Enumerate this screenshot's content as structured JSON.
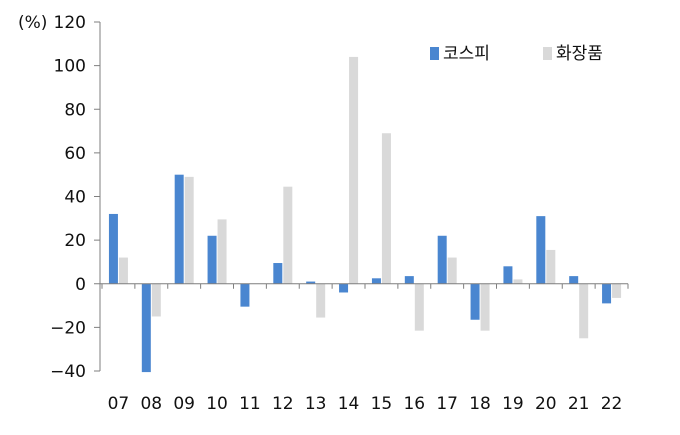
{
  "chart_data": {
    "type": "bar",
    "unit_label": "(%)",
    "categories": [
      "07",
      "08",
      "09",
      "10",
      "11",
      "12",
      "13",
      "14",
      "15",
      "16",
      "17",
      "18",
      "19",
      "20",
      "21",
      "22"
    ],
    "series": [
      {
        "name": "코스피",
        "color": "#4A86D0",
        "values": [
          32,
          -40.5,
          50,
          22,
          -10.5,
          9.5,
          1,
          -4,
          2.5,
          3.5,
          22,
          -16.5,
          8,
          31,
          3.5,
          -9
        ]
      },
      {
        "name": "화장품",
        "color": "#D9D9D9",
        "values": [
          12,
          -15,
          49,
          29.5,
          0,
          44.5,
          -15.5,
          104,
          69,
          -21.5,
          12,
          -21.5,
          2,
          15.5,
          -25,
          -6.5
        ]
      }
    ],
    "ylim": [
      -40,
      120
    ],
    "yticks": [
      -40,
      -20,
      0,
      20,
      40,
      60,
      80,
      100,
      120
    ],
    "grid": false,
    "legend_position": "top-right"
  }
}
